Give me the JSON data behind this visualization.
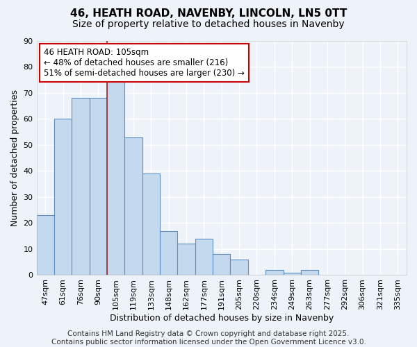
{
  "title": "46, HEATH ROAD, NAVENBY, LINCOLN, LN5 0TT",
  "subtitle": "Size of property relative to detached houses in Navenby",
  "xlabel": "Distribution of detached houses by size in Navenby",
  "ylabel": "Number of detached properties",
  "categories": [
    "47sqm",
    "61sqm",
    "76sqm",
    "90sqm",
    "105sqm",
    "119sqm",
    "133sqm",
    "148sqm",
    "162sqm",
    "177sqm",
    "191sqm",
    "205sqm",
    "220sqm",
    "234sqm",
    "249sqm",
    "263sqm",
    "277sqm",
    "292sqm",
    "306sqm",
    "321sqm",
    "335sqm"
  ],
  "values": [
    23,
    60,
    68,
    68,
    76,
    53,
    39,
    17,
    12,
    14,
    8,
    6,
    0,
    2,
    1,
    2,
    0,
    0,
    0,
    0,
    0
  ],
  "bar_color": "#c5d9ee",
  "bar_edge_color": "#5a8fc0",
  "highlight_index": 4,
  "highlight_line_color": "#aa2222",
  "ylim": [
    0,
    90
  ],
  "yticks": [
    0,
    10,
    20,
    30,
    40,
    50,
    60,
    70,
    80,
    90
  ],
  "background_color": "#eef3f9",
  "plot_background_color": "#eef3f9",
  "grid_color": "#ffffff",
  "annotation_text": "46 HEATH ROAD: 105sqm\n← 48% of detached houses are smaller (216)\n51% of semi-detached houses are larger (230) →",
  "annotation_box_color": "#ffffff",
  "annotation_box_edge_color": "#cc0000",
  "footer_text": "Contains HM Land Registry data © Crown copyright and database right 2025.\nContains public sector information licensed under the Open Government Licence v3.0.",
  "title_fontsize": 11,
  "subtitle_fontsize": 10,
  "axis_label_fontsize": 9,
  "tick_fontsize": 8,
  "annotation_fontsize": 8.5,
  "footer_fontsize": 7.5
}
